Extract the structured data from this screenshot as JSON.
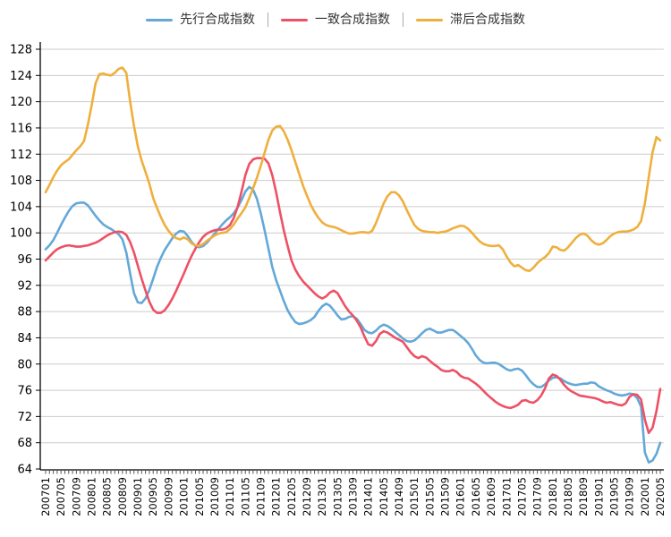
{
  "legend": {
    "position": "top",
    "separator": "|",
    "items": [
      {
        "label": "先行合成指数",
        "color": "#63a8d8"
      },
      {
        "label": "一致合成指数",
        "color": "#ee5165"
      },
      {
        "label": "滞后合成指数",
        "color": "#efaf3d"
      }
    ]
  },
  "chart_data": {
    "type": "line",
    "title": "",
    "xlabel": "",
    "ylabel": "",
    "frequency": "monthly",
    "x_start": "200701",
    "x_end": "202005",
    "n_points": 161,
    "x_tick_labels": [
      "200701",
      "200705",
      "200709",
      "200801",
      "200805",
      "200809",
      "200901",
      "200905",
      "200909",
      "201001",
      "201005",
      "201009",
      "201101",
      "201105",
      "201109",
      "201201",
      "201205",
      "201209",
      "201301",
      "201305",
      "201309",
      "201401",
      "201405",
      "201409",
      "201501",
      "201505",
      "201509",
      "201601",
      "201605",
      "201609",
      "201701",
      "201705",
      "201709",
      "201801",
      "201805",
      "201809",
      "201901",
      "201905",
      "201909",
      "202001",
      "202005"
    ],
    "x_label_every_n_months": 4,
    "ylim": [
      64,
      128
    ],
    "y_ticks": [
      64,
      68,
      72,
      76,
      80,
      84,
      88,
      92,
      96,
      100,
      104,
      108,
      112,
      116,
      120,
      124,
      128
    ],
    "grid": true,
    "legend_position": "top",
    "series": [
      {
        "name": "先行合成指数",
        "color": "#63a8d8",
        "values": [
          97.5,
          98.1,
          98.9,
          100.0,
          101.2,
          102.3,
          103.3,
          104.1,
          104.5,
          104.6,
          104.6,
          104.2,
          103.4,
          102.6,
          101.9,
          101.3,
          100.9,
          100.6,
          100.2,
          99.8,
          99.0,
          97.0,
          93.8,
          90.8,
          89.4,
          89.3,
          90.0,
          91.3,
          93.0,
          94.8,
          96.2,
          97.4,
          98.3,
          99.2,
          99.9,
          100.3,
          100.2,
          99.5,
          98.6,
          98.0,
          97.8,
          98.0,
          98.5,
          99.2,
          99.9,
          100.6,
          101.3,
          101.9,
          102.4,
          103.0,
          103.9,
          105.0,
          106.3,
          107.0,
          106.6,
          105.2,
          103.0,
          100.4,
          97.6,
          94.8,
          92.8,
          91.2,
          89.6,
          88.2,
          87.2,
          86.4,
          86.1,
          86.2,
          86.4,
          86.7,
          87.2,
          88.1,
          88.8,
          89.2,
          88.9,
          88.2,
          87.4,
          86.8,
          86.9,
          87.2,
          87.3,
          86.9,
          86.1,
          85.2,
          84.8,
          84.7,
          85.1,
          85.7,
          86.0,
          85.8,
          85.4,
          84.9,
          84.4,
          83.9,
          83.5,
          83.4,
          83.6,
          84.1,
          84.7,
          85.2,
          85.4,
          85.1,
          84.8,
          84.8,
          85.0,
          85.2,
          85.2,
          84.8,
          84.3,
          83.8,
          83.2,
          82.3,
          81.3,
          80.6,
          80.2,
          80.1,
          80.2,
          80.2,
          80.0,
          79.6,
          79.2,
          79.0,
          79.2,
          79.3,
          79.0,
          78.3,
          77.5,
          76.9,
          76.5,
          76.5,
          76.9,
          77.5,
          77.9,
          78.0,
          77.8,
          77.4,
          77.1,
          76.9,
          76.8,
          76.9,
          77.0,
          77.0,
          77.2,
          77.1,
          76.6,
          76.3,
          76.0,
          75.8,
          75.5,
          75.3,
          75.2,
          75.3,
          75.5,
          75.4,
          74.8,
          73.5,
          66.5,
          65.0,
          65.3,
          66.3,
          68.0
        ]
      },
      {
        "name": "一致合成指数",
        "color": "#ee5165",
        "values": [
          95.8,
          96.4,
          97.0,
          97.5,
          97.8,
          98.0,
          98.1,
          98.0,
          97.9,
          97.9,
          98.0,
          98.1,
          98.3,
          98.5,
          98.8,
          99.2,
          99.6,
          99.9,
          100.1,
          100.2,
          100.1,
          99.7,
          98.6,
          97.0,
          95.0,
          93.0,
          91.2,
          89.5,
          88.3,
          87.8,
          87.8,
          88.2,
          89.0,
          90.0,
          91.2,
          92.5,
          93.8,
          95.2,
          96.5,
          97.6,
          98.6,
          99.4,
          99.9,
          100.2,
          100.4,
          100.5,
          100.5,
          100.7,
          101.2,
          102.3,
          104.0,
          106.3,
          108.8,
          110.5,
          111.2,
          111.4,
          111.4,
          111.3,
          110.6,
          108.8,
          106.2,
          103.2,
          100.4,
          98.0,
          95.8,
          94.4,
          93.4,
          92.6,
          92.0,
          91.4,
          90.8,
          90.3,
          90.0,
          90.3,
          90.9,
          91.2,
          90.8,
          89.8,
          88.8,
          88.0,
          87.4,
          86.6,
          85.6,
          84.2,
          83.0,
          82.8,
          83.5,
          84.6,
          85.0,
          84.8,
          84.4,
          84.0,
          83.7,
          83.4,
          82.6,
          81.8,
          81.2,
          80.9,
          81.2,
          81.0,
          80.5,
          80.0,
          79.6,
          79.1,
          78.9,
          78.9,
          79.1,
          78.8,
          78.2,
          77.9,
          77.8,
          77.4,
          77.0,
          76.5,
          75.9,
          75.3,
          74.8,
          74.3,
          73.9,
          73.6,
          73.4,
          73.3,
          73.5,
          73.8,
          74.4,
          74.5,
          74.2,
          74.1,
          74.5,
          75.2,
          76.3,
          77.8,
          78.4,
          78.2,
          77.6,
          76.8,
          76.2,
          75.8,
          75.5,
          75.2,
          75.1,
          75.0,
          74.9,
          74.8,
          74.6,
          74.3,
          74.1,
          74.2,
          74.0,
          73.8,
          73.7,
          74.0,
          75.0,
          75.4,
          75.3,
          74.6,
          71.5,
          69.5,
          70.3,
          72.8,
          76.2
        ]
      },
      {
        "name": "滞后合成指数",
        "color": "#efaf3d",
        "values": [
          106.2,
          107.3,
          108.5,
          109.5,
          110.3,
          110.8,
          111.2,
          111.9,
          112.6,
          113.2,
          114.0,
          116.5,
          119.5,
          122.8,
          124.2,
          124.3,
          124.1,
          124.0,
          124.4,
          125.0,
          125.2,
          124.4,
          120.0,
          116.3,
          113.2,
          111.0,
          109.3,
          107.5,
          105.3,
          103.8,
          102.4,
          101.2,
          100.3,
          99.6,
          99.2,
          99.0,
          99.3,
          99.0,
          98.4,
          98.1,
          98.0,
          98.3,
          98.8,
          99.2,
          99.6,
          99.9,
          100.0,
          100.1,
          100.6,
          101.3,
          102.2,
          103.0,
          103.9,
          105.3,
          106.8,
          108.4,
          110.2,
          112.2,
          114.2,
          115.6,
          116.2,
          116.3,
          115.5,
          114.2,
          112.6,
          110.8,
          109.0,
          107.2,
          105.7,
          104.3,
          103.2,
          102.3,
          101.6,
          101.2,
          101.0,
          100.9,
          100.7,
          100.4,
          100.1,
          99.9,
          99.9,
          100.0,
          100.1,
          100.1,
          100.0,
          100.3,
          101.5,
          103.0,
          104.5,
          105.6,
          106.2,
          106.2,
          105.7,
          104.8,
          103.5,
          102.3,
          101.2,
          100.6,
          100.3,
          100.2,
          100.1,
          100.1,
          100.0,
          100.1,
          100.2,
          100.4,
          100.7,
          100.9,
          101.1,
          101.0,
          100.6,
          100.0,
          99.3,
          98.7,
          98.3,
          98.1,
          98.0,
          98.0,
          98.1,
          97.5,
          96.4,
          95.5,
          94.9,
          95.1,
          94.7,
          94.3,
          94.2,
          94.7,
          95.4,
          95.9,
          96.3,
          96.9,
          97.9,
          97.8,
          97.4,
          97.3,
          97.8,
          98.5,
          99.2,
          99.7,
          99.9,
          99.6,
          98.9,
          98.4,
          98.2,
          98.4,
          98.9,
          99.5,
          99.9,
          100.1,
          100.2,
          100.2,
          100.3,
          100.5,
          100.9,
          101.8,
          104.5,
          108.5,
          112.3,
          114.6,
          114.1
        ]
      }
    ],
    "style": {
      "axis_color": "#000000",
      "grid_color": "#cccccc",
      "tick_color": "#555555",
      "tick_label_color": "#000000",
      "background": "#ffffff"
    }
  }
}
